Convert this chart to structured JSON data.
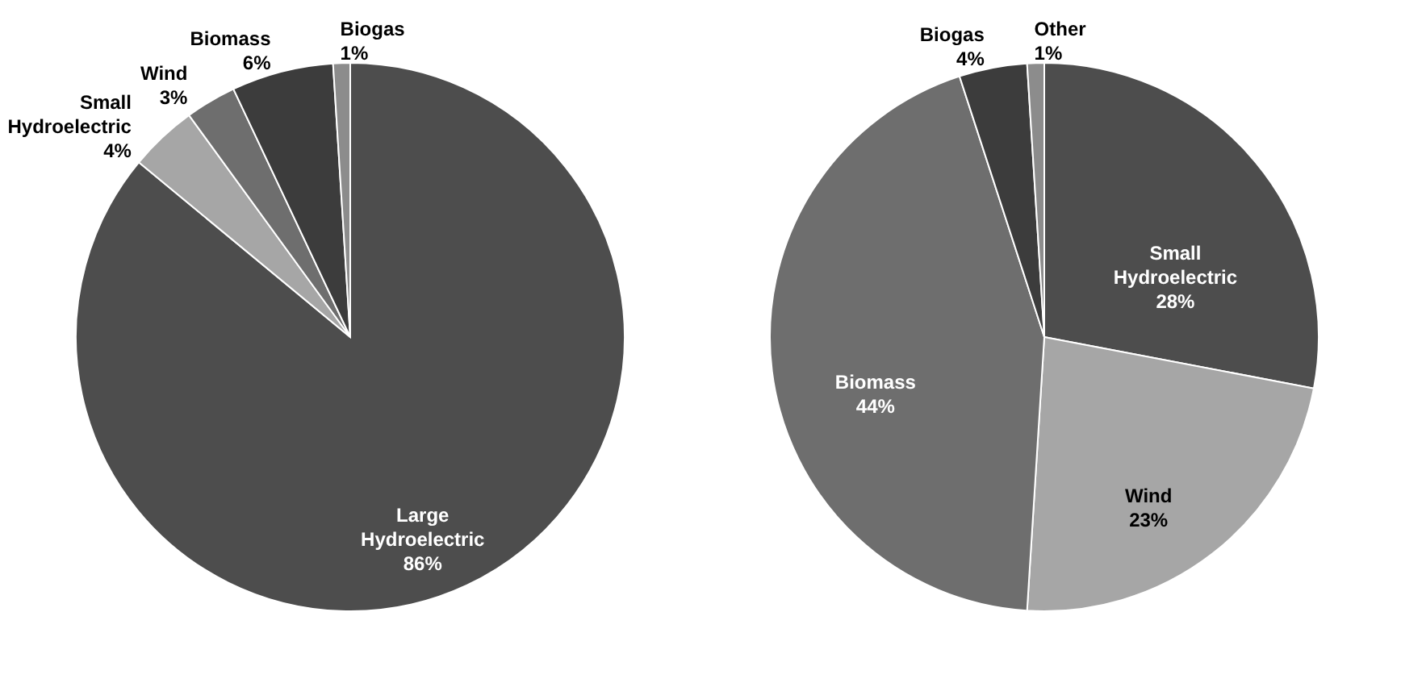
{
  "chart_data": [
    {
      "type": "pie",
      "categories": [
        "Large Hydroelectric",
        "Small Hydroelectric",
        "Wind",
        "Biomass",
        "Biogas"
      ],
      "values": [
        86,
        4,
        3,
        6,
        1
      ],
      "value_labels": [
        "86%",
        "4%",
        "3%",
        "6%",
        "1%"
      ],
      "colors": [
        "#4d4d4d",
        "#a6a6a6",
        "#6e6e6e",
        "#3c3c3c",
        "#8c8c8c"
      ],
      "legend": false
    },
    {
      "type": "pie",
      "categories": [
        "Small Hydroelectric",
        "Wind",
        "Biomass",
        "Biogas",
        "Other"
      ],
      "values": [
        28,
        23,
        44,
        4,
        1
      ],
      "value_labels": [
        "28%",
        "23%",
        "44%",
        "4%",
        "1%"
      ],
      "colors": [
        "#4d4d4d",
        "#a6a6a6",
        "#6e6e6e",
        "#3c3c3c",
        "#8c8c8c"
      ],
      "legend": false
    }
  ]
}
